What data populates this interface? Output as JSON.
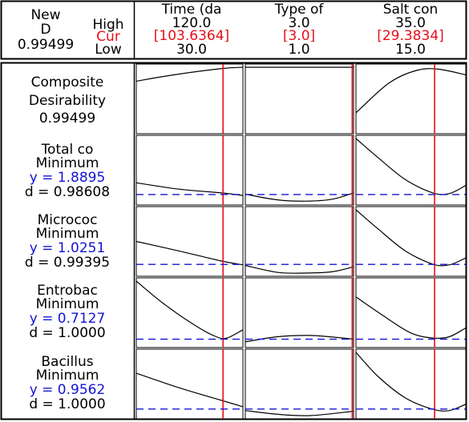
{
  "header": {
    "new_label": "New",
    "d_label": "D",
    "d_value": "0.99499",
    "high_label": "High",
    "cur_label": "Cur",
    "low_label": "Low",
    "factors": [
      {
        "name": "Time (da",
        "high": "120.0",
        "cur": "[103.6364]",
        "low": "30.0"
      },
      {
        "name": "Type of",
        "high": "3.0",
        "cur": "[3.0]",
        "low": "1.0"
      },
      {
        "name": "Salt con",
        "high": "35.0",
        "cur": "[29.3834]",
        "low": "15.0"
      }
    ]
  },
  "rows": [
    {
      "title1": "Composite",
      "title2": "Desirability",
      "l3": "0.99499",
      "l4": ""
    },
    {
      "title1": "Total co",
      "title2": "Minimum",
      "l3": "y = 1.8895",
      "l4": "d = 0.98608"
    },
    {
      "title1": "Micrococ",
      "title2": "Minimum",
      "l3": "y = 1.0251",
      "l4": "d = 0.99395"
    },
    {
      "title1": "Entrobac",
      "title2": "Minimum",
      "l3": "y = 0.7127",
      "l4": "d = 1.0000"
    },
    {
      "title1": "Bacillus",
      "title2": "Minimum",
      "l3": "y = 0.9562",
      "l4": "d = 1.0000"
    }
  ],
  "colors": {
    "text": "#000000",
    "current": "#e8101a",
    "response": "#1414d2",
    "grid": "#000000",
    "curve": "#000000"
  },
  "chart_data": {
    "type": "line",
    "title": "",
    "factors": [
      {
        "name": "Time (da",
        "low": 30.0,
        "high": 120.0,
        "current": 103.6364
      },
      {
        "name": "Type of",
        "low": 1.0,
        "high": 3.0,
        "current": 3.0
      },
      {
        "name": "Salt con",
        "low": 15.0,
        "high": 35.0,
        "current": 29.3834
      }
    ],
    "responses": [
      {
        "name": "Composite Desirability",
        "goal": "",
        "y": null,
        "d": 0.99499
      },
      {
        "name": "Total co",
        "goal": "Minimum",
        "y": 1.8895,
        "d": 0.98608
      },
      {
        "name": "Micrococ",
        "goal": "Minimum",
        "y": 1.0251,
        "d": 0.99395
      },
      {
        "name": "Entrobac",
        "goal": "Minimum",
        "y": 0.7127,
        "d": 1.0
      },
      {
        "name": "Bacillus",
        "goal": "Minimum",
        "y": 0.9562,
        "d": 1.0
      }
    ],
    "grid": false,
    "legend": "none"
  }
}
